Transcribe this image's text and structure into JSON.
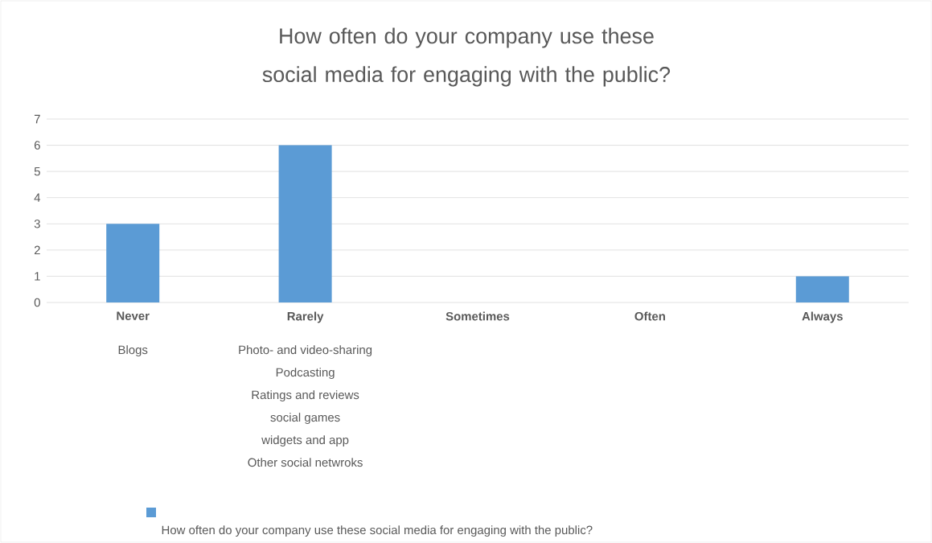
{
  "chart_data": {
    "type": "bar",
    "title": "How often do your company use these social media for engaging with the public?",
    "categories": [
      "Never",
      "Rarely",
      "Sometimes",
      "Often",
      "Always"
    ],
    "series": [
      {
        "name": "How often do your company use these social media for engaging with the public?",
        "color": "#5b9bd5",
        "values": [
          3,
          6,
          0,
          0,
          1
        ]
      }
    ],
    "annotations": [
      "Blogs",
      "Photo- and video-sharing",
      "Podcasting",
      "Ratings and reviews",
      "social games",
      "widgets and app",
      "Other social netwroks"
    ],
    "ylim": [
      0,
      7
    ],
    "yticks": [
      0,
      1,
      2,
      3,
      4,
      5,
      6,
      7
    ],
    "grid": "y",
    "legend": "bottom"
  }
}
